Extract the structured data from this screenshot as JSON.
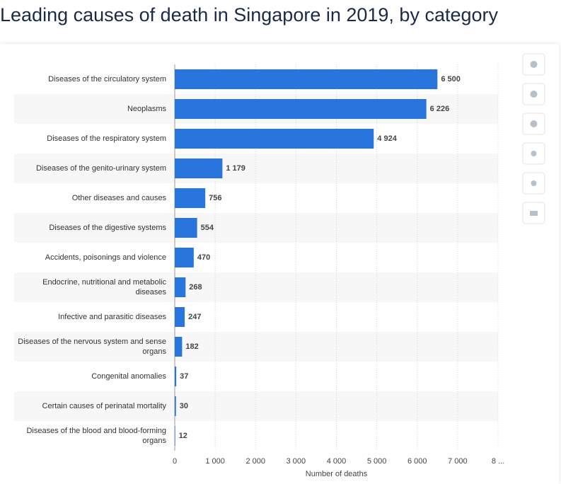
{
  "chart_data": {
    "type": "bar",
    "orientation": "horizontal",
    "title": "Leading causes of death in Singapore in 2019, by category",
    "x_label": "Number of deaths",
    "categories": [
      "Diseases of the circulatory system",
      "Neoplasms",
      "Diseases of the respiratory system",
      "Diseases of the genito-urinary system",
      "Other diseases and causes",
      "Diseases of the digestive systems",
      "Accidents, poisonings and violence",
      "Endocrine, nutritional and metabolic diseases",
      "Infective and parasitic diseases",
      "Diseases of the nervous system and sense organs",
      "Congenital anomalies",
      "Certain causes of perinatal mortality",
      "Diseases of the blood and blood-forming organs"
    ],
    "values": [
      6500,
      6226,
      4924,
      1179,
      756,
      554,
      470,
      268,
      247,
      182,
      37,
      30,
      12
    ],
    "value_labels": [
      "6 500",
      "6 226",
      "4 924",
      "1 179",
      "756",
      "554",
      "470",
      "268",
      "247",
      "182",
      "37",
      "30",
      "12"
    ],
    "color": "#2876dd",
    "xlim": [
      0,
      8000
    ],
    "xticks": [
      0,
      {
        "value": 1000,
        "label": "1 000"
      },
      {
        "value": 2000,
        "label": "2 000"
      },
      {
        "value": 3000,
        "label": "3 000"
      },
      {
        "value": 4000,
        "label": "4 000"
      },
      {
        "value": 5000,
        "label": "5 000"
      },
      {
        "value": 6000,
        "label": "6 000"
      },
      {
        "value": 7000,
        "label": "7 000"
      },
      {
        "value": 8000,
        "label": "8 ..."
      }
    ],
    "grid": true
  }
}
